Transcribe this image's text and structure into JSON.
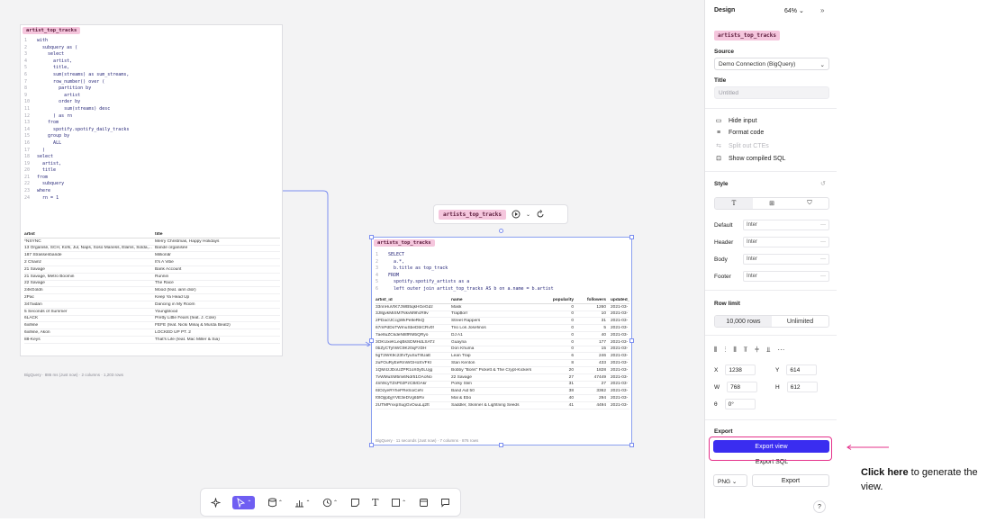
{
  "colors": {
    "accent": "#3a2df0",
    "highlight": "#e5308a",
    "pill_bg": "#f5c6dd",
    "connector": "#7d8ff0"
  },
  "cell1": {
    "title": "artist_top_tracks",
    "code": [
      {
        "n": "1",
        "t": "with"
      },
      {
        "n": "2",
        "t": "  subquery as ("
      },
      {
        "n": "3",
        "t": "    select"
      },
      {
        "n": "4",
        "t": "      artist,"
      },
      {
        "n": "5",
        "t": "      title,"
      },
      {
        "n": "6",
        "t": "      sum(streams) as sum_streams,"
      },
      {
        "n": "7",
        "t": "      row_number() over ("
      },
      {
        "n": "8",
        "t": "        partition by"
      },
      {
        "n": "9",
        "t": "          artist"
      },
      {
        "n": "10",
        "t": "        order by"
      },
      {
        "n": "11",
        "t": "          sum(streams) desc"
      },
      {
        "n": "12",
        "t": "      ) as rn"
      },
      {
        "n": "13",
        "t": "    from"
      },
      {
        "n": "14",
        "t": "      spotify.spotify_daily_tracks"
      },
      {
        "n": "15",
        "t": "    group by"
      },
      {
        "n": "16",
        "t": "      ALL"
      },
      {
        "n": "17",
        "t": "  )"
      },
      {
        "n": "18",
        "t": "select"
      },
      {
        "n": "19",
        "t": "  artist,"
      },
      {
        "n": "20",
        "t": "  title"
      },
      {
        "n": "21",
        "t": "from"
      },
      {
        "n": "22",
        "t": "  subquery"
      },
      {
        "n": "23",
        "t": "where"
      },
      {
        "n": "24",
        "t": "  rn = 1"
      }
    ],
    "columns": [
      "artist",
      "title"
    ],
    "rows": [
      [
        "*NSYNC",
        "Merry Christmas, Happy Holidays"
      ],
      [
        "13 Organisé, SCH, Kofs, Jul, Naps, Soso Maness, Elams, Solda,...",
        "Bande organisée"
      ],
      [
        "187 Strassenbande",
        "Millionär"
      ],
      [
        "2 Chainz",
        "It's A Vibe"
      ],
      [
        "21 Savage",
        "Bank Account"
      ],
      [
        "21 Savage, Metro Boomin",
        "Runnin"
      ],
      [
        "22 Savage",
        "The Race"
      ],
      [
        "24kGoldn",
        "Mood (feat. iann dior)"
      ],
      [
        "2Pac",
        "Keep Ya Head Up"
      ],
      [
        "347aidan",
        "Dancing in My Room"
      ],
      [
        "5 Seconds of Summer",
        "Youngblood"
      ],
      [
        "6LACK",
        "Pretty Little Fears (feat. J. Cole)"
      ],
      [
        "6ix9ine",
        "FEFE (feat. Nicki Minaj & Murda Beatz)"
      ],
      [
        "6ix9ine, Akon",
        "LOCKED UP PT. 2"
      ],
      [
        "88-Keys",
        "That's Life (feat. Mac Miller & Sia)"
      ]
    ],
    "footer": "BigQuery   ·   886 ms (Just now)   ·   2 columns · 1,203 rows"
  },
  "cell2": {
    "title": "artists_top_tracks",
    "toolbar_title": "artists_top_tracks",
    "code": [
      {
        "n": "1",
        "t": "SELECT"
      },
      {
        "n": "2",
        "t": "  a.*,"
      },
      {
        "n": "3",
        "t": "  b.title as top_track"
      },
      {
        "n": "4",
        "t": "FROM"
      },
      {
        "n": "5",
        "t": "  spotify.spotify_artists as a"
      },
      {
        "n": "6",
        "t": "  left outer join artist_top_tracks AS b on a.name = b.artist"
      }
    ],
    "columns": [
      "artist_id",
      "name",
      "popularity",
      "followers",
      "updated_a"
    ],
    "rows": [
      [
        "33nnHuVtK7JWB5qkHGeGdz",
        "Mask",
        "0",
        "1260",
        "2021-03-"
      ],
      [
        "3J8gvkMiSM7NkvM9hcR9v",
        "Trap$orr",
        "0",
        "10",
        "2021-03-"
      ],
      [
        "2PDacfJCcgWkPe8eRkQ",
        "Street Rappers",
        "0",
        "31",
        "2021-03-"
      ],
      [
        "67mPdDoTWmuSbeDbICRv0f",
        "Trio Los Josefinos",
        "0",
        "5",
        "2021-03-"
      ],
      [
        "7ae8uZCkdeNl8fRMbQRyo",
        "DJ A1",
        "0",
        "40",
        "2021-03-"
      ],
      [
        "3OKUxeKLeqBsSDMHdLSATz",
        "Guayna",
        "0",
        "177",
        "2021-03-"
      ],
      [
        "0bZyCTyhWC9Kz0xjFzDH",
        "Don Khuma",
        "0",
        "15",
        "2021-03-"
      ],
      [
        "5gT2WK9c23hiTyuSuT8UaE",
        "Lean Trap",
        "6",
        "246",
        "2021-03-"
      ],
      [
        "2uFOuRyEeRmWGHoSVFKI",
        "Stan Kenton",
        "8",
        "433",
        "2021-03-"
      ],
      [
        "1QM4zJDoUZPR1oX0y0LUjg",
        "Bobby \"Boris\" Pickett & The Crypt-Kickers",
        "20",
        "1828",
        "2021-03-"
      ],
      [
        "7vWMuSM5mi6Ndr51OAoNo",
        "22 Savage",
        "27",
        "47449",
        "2021-03-"
      ],
      [
        "4nh9cyTZsP02PzCBrDAkr",
        "Porky Slim",
        "31",
        "27",
        "2021-03-"
      ],
      [
        "6tOzyeRYheFReSoiCeN",
        "Band Aid 50",
        "38",
        "3362",
        "2021-03-"
      ],
      [
        "f0tOjlpbjjYVE3eDVg6bRv",
        "Mal & Ebo",
        "40",
        "294",
        "2021-03-"
      ],
      [
        "2UTMPrvxpSugGvOuuLq2ft",
        "Saddler, Skinner & Lightning Seeds",
        "41",
        "4494",
        "2021-03-"
      ]
    ],
    "footer": "BigQuery   ·   11 seconds (Just now)   ·   7 columns · 876 rows"
  },
  "panel": {
    "header": "Design",
    "zoom": "64%",
    "cell_name": "artists_top_tracks",
    "source_label": "Source",
    "source_value": "Demo Connection (BigQuery)",
    "title_label": "Title",
    "title_placeholder": "Untitled",
    "options": [
      "Hide input",
      "Format code",
      "Split out CTEs",
      "Show compiled SQL"
    ],
    "style_label": "Style",
    "fonts": [
      {
        "label": "Default",
        "value": "Inter"
      },
      {
        "label": "Header",
        "value": "Inter"
      },
      {
        "label": "Body",
        "value": "Inter"
      },
      {
        "label": "Footer",
        "value": "Inter"
      }
    ],
    "row_limit_label": "Row limit",
    "row_limit_options": [
      "10,000 rows",
      "Unlimited"
    ],
    "geometry": {
      "x_label": "X",
      "x": "1238",
      "y_label": "Y",
      "y": "614",
      "w_label": "W",
      "w": "768",
      "h_label": "H",
      "h": "612",
      "r_label": "θ",
      "r": "0°"
    },
    "export_label": "Export",
    "export_view": "Export view",
    "export_sql": "Export SQL",
    "format": "PNG",
    "export_button": "Export",
    "help": "?"
  },
  "callout": {
    "bold": "Click here",
    "rest": " to generate the view."
  }
}
